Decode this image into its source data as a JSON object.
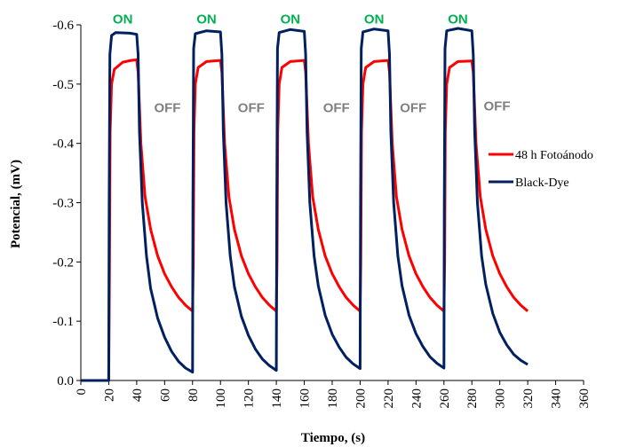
{
  "chart_data": {
    "type": "line",
    "title": "",
    "xlabel": "Tiempo, (s)",
    "ylabel": "Potencial, (mV)",
    "xlim": [
      0,
      360
    ],
    "ylim": [
      0.0,
      -0.6
    ],
    "y_axis_inverted": true,
    "x_ticks": [
      "0",
      "20",
      "40",
      "60",
      "80",
      "100",
      "120",
      "140",
      "160",
      "180",
      "200",
      "220",
      "240",
      "260",
      "280",
      "300",
      "320",
      "340",
      "360"
    ],
    "x_tick_values": [
      0,
      20,
      40,
      60,
      80,
      100,
      120,
      140,
      160,
      180,
      200,
      220,
      240,
      260,
      280,
      300,
      320,
      340,
      360
    ],
    "y_ticks": [
      "0.0",
      "-0.1",
      "-0.2",
      "-0.3",
      "-0.4",
      "-0.5",
      "-0.6"
    ],
    "y_tick_values": [
      0.0,
      -0.1,
      -0.2,
      -0.3,
      -0.4,
      -0.5,
      -0.6
    ],
    "grid": false,
    "legend_position": "right",
    "series": [
      {
        "name": "48 h Fotoánodo",
        "color": "#ff0000",
        "points": [
          [
            0,
            0.0
          ],
          [
            20,
            0.0
          ],
          [
            20.5,
            -0.18
          ],
          [
            21,
            -0.42
          ],
          [
            22,
            -0.5
          ],
          [
            24,
            -0.525
          ],
          [
            30,
            -0.537
          ],
          [
            36,
            -0.54
          ],
          [
            40,
            -0.541
          ],
          [
            41,
            -0.52
          ],
          [
            43,
            -0.4
          ],
          [
            46,
            -0.31
          ],
          [
            50,
            -0.255
          ],
          [
            55,
            -0.21
          ],
          [
            60,
            -0.18
          ],
          [
            65,
            -0.158
          ],
          [
            70,
            -0.14
          ],
          [
            75,
            -0.127
          ],
          [
            80,
            -0.117
          ],
          [
            80.5,
            -0.2
          ],
          [
            81,
            -0.42
          ],
          [
            82,
            -0.5
          ],
          [
            84,
            -0.528
          ],
          [
            90,
            -0.538
          ],
          [
            100,
            -0.54
          ],
          [
            101,
            -0.52
          ],
          [
            103,
            -0.4
          ],
          [
            106,
            -0.31
          ],
          [
            110,
            -0.255
          ],
          [
            115,
            -0.21
          ],
          [
            120,
            -0.18
          ],
          [
            125,
            -0.158
          ],
          [
            130,
            -0.14
          ],
          [
            135,
            -0.127
          ],
          [
            140,
            -0.117
          ],
          [
            140.5,
            -0.2
          ],
          [
            141,
            -0.42
          ],
          [
            142,
            -0.5
          ],
          [
            144,
            -0.528
          ],
          [
            150,
            -0.538
          ],
          [
            160,
            -0.54
          ],
          [
            161,
            -0.52
          ],
          [
            163,
            -0.4
          ],
          [
            166,
            -0.31
          ],
          [
            170,
            -0.255
          ],
          [
            175,
            -0.21
          ],
          [
            180,
            -0.18
          ],
          [
            185,
            -0.158
          ],
          [
            190,
            -0.14
          ],
          [
            195,
            -0.127
          ],
          [
            200,
            -0.117
          ],
          [
            200.5,
            -0.2
          ],
          [
            201,
            -0.42
          ],
          [
            202,
            -0.5
          ],
          [
            204,
            -0.528
          ],
          [
            210,
            -0.538
          ],
          [
            220,
            -0.54
          ],
          [
            221,
            -0.52
          ],
          [
            223,
            -0.4
          ],
          [
            226,
            -0.31
          ],
          [
            230,
            -0.255
          ],
          [
            235,
            -0.21
          ],
          [
            240,
            -0.18
          ],
          [
            245,
            -0.158
          ],
          [
            250,
            -0.14
          ],
          [
            255,
            -0.127
          ],
          [
            260,
            -0.117
          ],
          [
            260.5,
            -0.2
          ],
          [
            261,
            -0.42
          ],
          [
            262,
            -0.5
          ],
          [
            264,
            -0.528
          ],
          [
            270,
            -0.538
          ],
          [
            280,
            -0.539
          ],
          [
            281,
            -0.52
          ],
          [
            283,
            -0.4
          ],
          [
            286,
            -0.31
          ],
          [
            290,
            -0.255
          ],
          [
            295,
            -0.21
          ],
          [
            300,
            -0.18
          ],
          [
            305,
            -0.158
          ],
          [
            310,
            -0.14
          ],
          [
            315,
            -0.127
          ],
          [
            320,
            -0.117
          ]
        ]
      },
      {
        "name": "Black-Dye",
        "color": "#002060",
        "points": [
          [
            0,
            0.0
          ],
          [
            20,
            0.0
          ],
          [
            20.3,
            -0.3
          ],
          [
            20.8,
            -0.55
          ],
          [
            22,
            -0.582
          ],
          [
            25,
            -0.587
          ],
          [
            35,
            -0.586
          ],
          [
            40,
            -0.584
          ],
          [
            41,
            -0.55
          ],
          [
            42,
            -0.42
          ],
          [
            44,
            -0.3
          ],
          [
            47,
            -0.21
          ],
          [
            50,
            -0.155
          ],
          [
            55,
            -0.105
          ],
          [
            60,
            -0.073
          ],
          [
            65,
            -0.049
          ],
          [
            70,
            -0.032
          ],
          [
            75,
            -0.021
          ],
          [
            80,
            -0.014
          ],
          [
            80.3,
            -0.3
          ],
          [
            80.8,
            -0.56
          ],
          [
            82,
            -0.585
          ],
          [
            90,
            -0.59
          ],
          [
            100,
            -0.588
          ],
          [
            101,
            -0.55
          ],
          [
            102,
            -0.42
          ],
          [
            104,
            -0.3
          ],
          [
            107,
            -0.21
          ],
          [
            110,
            -0.158
          ],
          [
            115,
            -0.108
          ],
          [
            120,
            -0.076
          ],
          [
            125,
            -0.053
          ],
          [
            130,
            -0.036
          ],
          [
            135,
            -0.025
          ],
          [
            140,
            -0.017
          ],
          [
            140.3,
            -0.3
          ],
          [
            140.8,
            -0.56
          ],
          [
            142,
            -0.587
          ],
          [
            150,
            -0.592
          ],
          [
            160,
            -0.589
          ],
          [
            161,
            -0.55
          ],
          [
            162,
            -0.42
          ],
          [
            164,
            -0.3
          ],
          [
            167,
            -0.21
          ],
          [
            170,
            -0.16
          ],
          [
            175,
            -0.11
          ],
          [
            180,
            -0.078
          ],
          [
            185,
            -0.056
          ],
          [
            190,
            -0.039
          ],
          [
            195,
            -0.028
          ],
          [
            200,
            -0.02
          ],
          [
            200.3,
            -0.3
          ],
          [
            200.8,
            -0.56
          ],
          [
            202,
            -0.588
          ],
          [
            210,
            -0.593
          ],
          [
            220,
            -0.59
          ],
          [
            221,
            -0.55
          ],
          [
            222,
            -0.42
          ],
          [
            224,
            -0.3
          ],
          [
            227,
            -0.21
          ],
          [
            230,
            -0.16
          ],
          [
            235,
            -0.11
          ],
          [
            240,
            -0.079
          ],
          [
            245,
            -0.057
          ],
          [
            250,
            -0.04
          ],
          [
            255,
            -0.029
          ],
          [
            260,
            -0.021
          ],
          [
            260.3,
            -0.3
          ],
          [
            260.8,
            -0.56
          ],
          [
            262,
            -0.59
          ],
          [
            270,
            -0.594
          ],
          [
            280,
            -0.59
          ],
          [
            281,
            -0.55
          ],
          [
            282,
            -0.42
          ],
          [
            284,
            -0.3
          ],
          [
            287,
            -0.21
          ],
          [
            290,
            -0.162
          ],
          [
            295,
            -0.113
          ],
          [
            300,
            -0.081
          ],
          [
            305,
            -0.06
          ],
          [
            310,
            -0.044
          ],
          [
            315,
            -0.034
          ],
          [
            320,
            -0.027
          ]
        ]
      }
    ],
    "annotations": [
      {
        "text": "ON",
        "color": "#00b050",
        "x": 30,
        "y": -0.61
      },
      {
        "text": "ON",
        "color": "#00b050",
        "x": 90,
        "y": -0.61
      },
      {
        "text": "ON",
        "color": "#00b050",
        "x": 150,
        "y": -0.61
      },
      {
        "text": "ON",
        "color": "#00b050",
        "x": 210,
        "y": -0.61
      },
      {
        "text": "ON",
        "color": "#00b050",
        "x": 270,
        "y": -0.61
      },
      {
        "text": "OFF",
        "color": "#808080",
        "x": 62,
        "y": -0.46
      },
      {
        "text": "OFF",
        "color": "#808080",
        "x": 122,
        "y": -0.46
      },
      {
        "text": "OFF",
        "color": "#808080",
        "x": 183,
        "y": -0.46
      },
      {
        "text": "OFF",
        "color": "#808080",
        "x": 238,
        "y": -0.46
      },
      {
        "text": "OFF",
        "color": "#808080",
        "x": 298,
        "y": -0.463
      }
    ]
  }
}
